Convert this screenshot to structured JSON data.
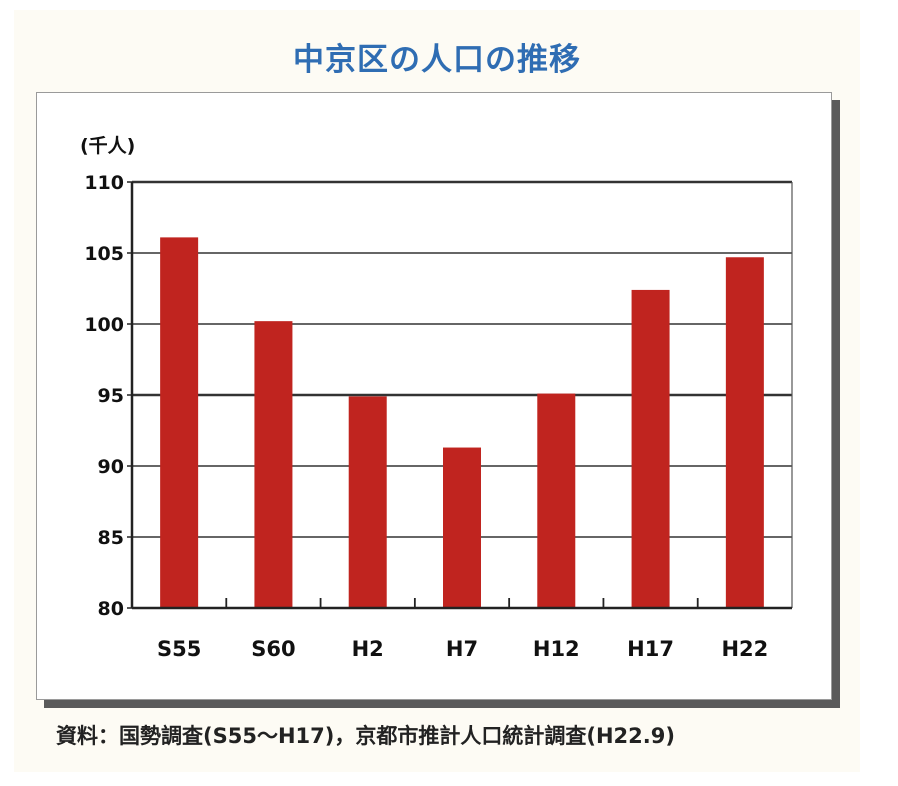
{
  "title": "中京区の人口の推移",
  "source_note": "資料：国勢調査(S55〜H17)，京都市推計人口統計調査(H22.9)",
  "colors": {
    "bar": "#c0241f",
    "title": "#2f6db3"
  },
  "chart_data": {
    "type": "bar",
    "title": "中京区の人口の推移",
    "ylabel": "(千人)",
    "xlabel": "",
    "categories": [
      "S55",
      "S60",
      "H2",
      "H7",
      "H12",
      "H17",
      "H22"
    ],
    "values": [
      106.1,
      100.2,
      94.9,
      91.3,
      95.1,
      102.4,
      104.7
    ],
    "ylim": [
      80,
      110
    ],
    "yticks": [
      80,
      85,
      90,
      95,
      100,
      105,
      110
    ],
    "grid": true
  }
}
